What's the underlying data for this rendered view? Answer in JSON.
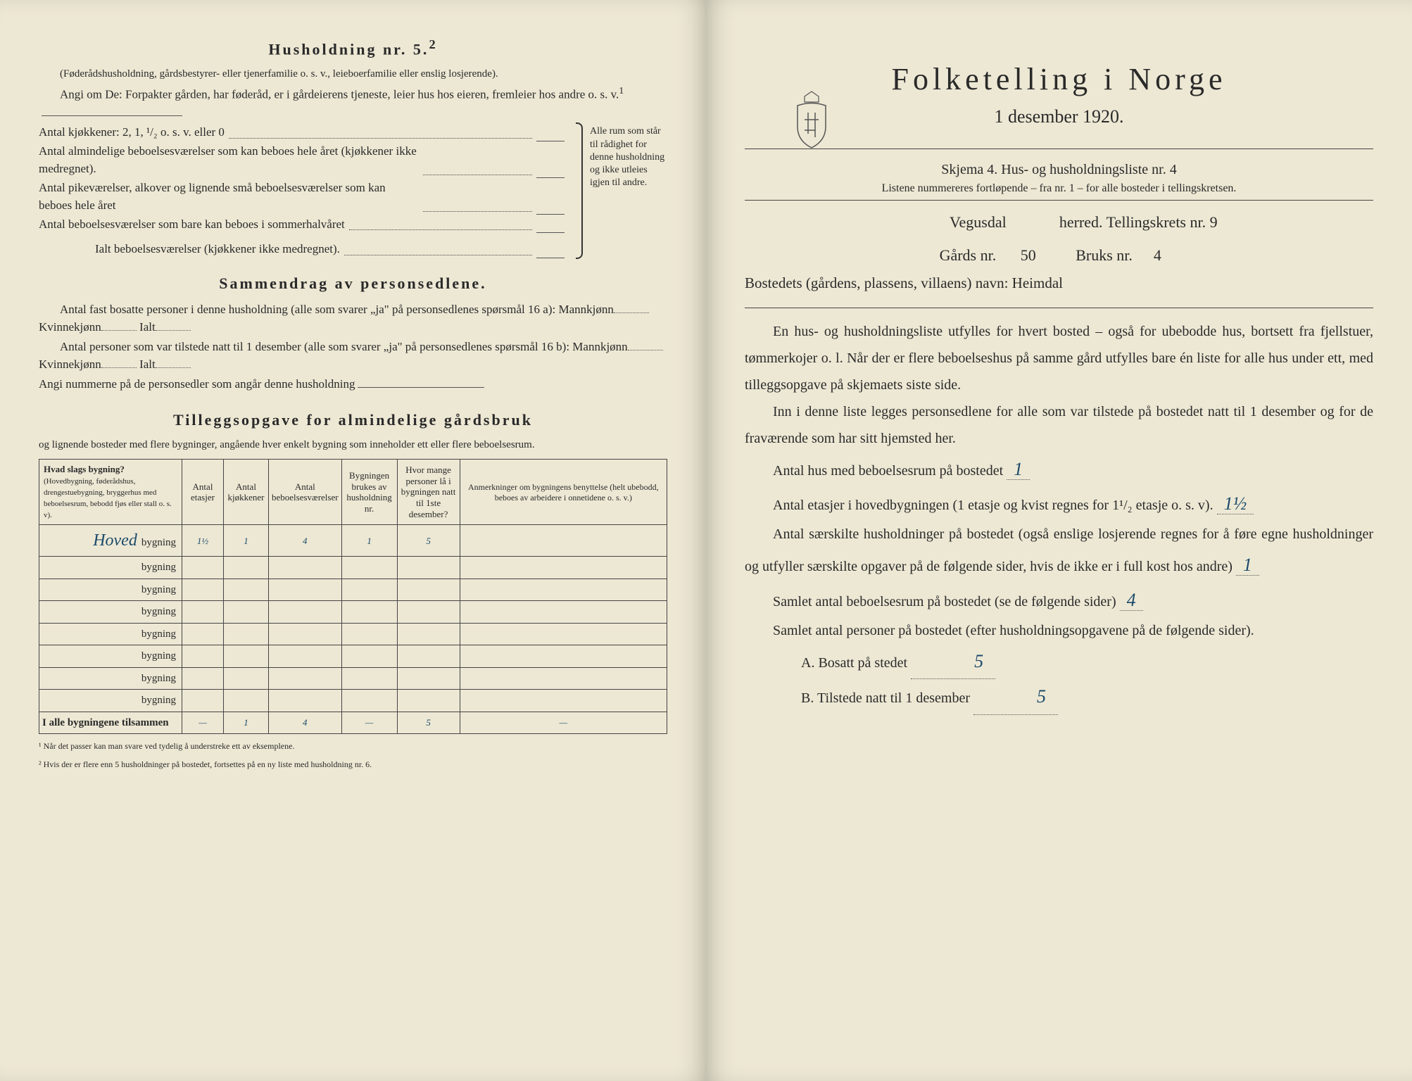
{
  "left": {
    "heading": "Husholdning nr. 5.",
    "heading_sup": "2",
    "sub1": "(Føderådshusholdning, gårdsbestyrer- eller tjenerfamilie o. s. v., leieboerfamilie eller enslig losjerende).",
    "body1": "Angi om De: Forpakter gården, har føderåd, er i gårdeierens tjeneste, leier hus hos eieren, fremleier hos andre o. s. v.",
    "body1_sup": "1",
    "kitchens_label": "Antal kjøkkener: 2, 1, ¹/₂ o. s. v. eller 0",
    "rooms1": "Antal almindelige beboelsesværelser som kan beboes hele året (kjøkkener ikke medregnet).",
    "rooms2": "Antal pikeværelser, alkover og lignende små beboelsesværelser som kan beboes hele året",
    "rooms3": "Antal beboelsesværelser som bare kan beboes i sommerhalvåret",
    "rooms_total": "Ialt beboelsesværelser  (kjøkkener ikke medregnet).",
    "bracket_note": "Alle rum som står til rådighet for denne husholdning og ikke utleies igjen til andre.",
    "section2": "Sammendrag av personsedlene.",
    "s2_l1a": "Antal fast bosatte personer i denne husholdning (alle som svarer „ja\" på personsedlenes spørsmål 16 a): Mannkjønn",
    "s2_kv": "Kvinnekjønn",
    "s2_ialt": "Ialt",
    "s2_l2a": "Antal personer som var tilstede natt til 1 desember (alle som svarer „ja\" på personsedlenes spørsmål 16 b): Mannkjønn",
    "s2_angi": "Angi nummerne på de personsedler som angår denne husholdning",
    "section3": "Tilleggsopgave for almindelige gårdsbruk",
    "s3_sub": "og lignende bosteder med flere bygninger, angående hver enkelt bygning som inneholder ett eller flere beboelsesrum.",
    "table": {
      "headers": [
        "Hvad slags bygning?\n(Hovedbygning, føderådshus, drengestuebygning, bryggerhus med beboelsesrum, bebodd fjøs eller stall o. s. v).",
        "Antal etasjer",
        "Antal kjøkkener",
        "Antal beboelsesværelser",
        "Bygningen brukes av husholdning nr.",
        "Hvor mange personer lå i bygningens benyttede (helt ubebodd, beboes av arbeidere i onnetidene o. s. v.)",
        "Anmerkninger om bygningens benyttelse (helt ubebodd, beboes av arbeidere i onnetidene o. s. v.)"
      ],
      "h5": "Hvor mange personer lå i bygningen natt til 1ste desember?",
      "row_label_prefix": "Hoved",
      "row_suffix": "bygning",
      "rows": [
        {
          "prefix": "Hoved",
          "cells": [
            "1½",
            "1",
            "4",
            "1",
            "5",
            ""
          ]
        },
        {
          "prefix": "",
          "cells": [
            "",
            "",
            "",
            "",
            "",
            ""
          ]
        },
        {
          "prefix": "",
          "cells": [
            "",
            "",
            "",
            "",
            "",
            ""
          ]
        },
        {
          "prefix": "",
          "cells": [
            "",
            "",
            "",
            "",
            "",
            ""
          ]
        },
        {
          "prefix": "",
          "cells": [
            "",
            "",
            "",
            "",
            "",
            ""
          ]
        },
        {
          "prefix": "",
          "cells": [
            "",
            "",
            "",
            "",
            "",
            ""
          ]
        },
        {
          "prefix": "",
          "cells": [
            "",
            "",
            "",
            "",
            "",
            ""
          ]
        },
        {
          "prefix": "",
          "cells": [
            "",
            "",
            "",
            "",
            "",
            ""
          ]
        }
      ],
      "total_label": "I alle bygningene tilsammen",
      "total_cells": [
        "—",
        "1",
        "4",
        "—",
        "5",
        "—"
      ]
    },
    "footnote1": "¹ Når det passer kan man svare ved tydelig å understreke ett av eksemplene.",
    "footnote2": "² Hvis der er flere enn 5 husholdninger på bostedet, fortsettes på en ny liste med husholdning nr. 6."
  },
  "right": {
    "title": "Folketelling i Norge",
    "date": "1 desember 1920.",
    "skjema_label": "Skjema 4.  Hus- og husholdningsliste nr.",
    "skjema_val": "4",
    "list_note": "Listene nummereres fortløpende – fra nr. 1 – for alle bosteder i tellingskretsen.",
    "herred_val": "Vegusdal",
    "herred_suffix": "herred.   Tellingskrets nr.",
    "krets_val": "9",
    "gard_label": "Gårds nr.",
    "gard_val": "50",
    "bruks_label": "Bruks nr.",
    "bruks_val": "4",
    "bosted_label": "Bostedets (gårdens, plassens, villaens) navn:",
    "bosted_val": "Heimdal",
    "para1": "En hus- og husholdningsliste utfylles for hvert bosted – også for ubebodde hus, bortsett fra fjellstuer, tømmerkojer o. l.  Når der er flere beboelseshus på samme gård utfylles bare én liste for alle hus under ett, med tilleggsopgave på skjemaets siste side.",
    "para2": "Inn i denne liste legges personsedlene for alle som var tilstede på bostedet natt til 1 desember og for de fraværende som har sitt hjemsted her.",
    "q1": "Antal hus med beboelsesrum på bostedet",
    "q1_val": "1",
    "q2a": "Antal etasjer i hovedbygningen (1 etasje og kvist regnes for 1¹/₂ etasje o. s. v).",
    "q2_val": "1½",
    "q3": "Antal særskilte husholdninger på bostedet (også enslige losjerende regnes for å føre egne husholdninger og utfyller særskilte opgaver på de følgende sider, hvis de ikke er i full kost hos andre)",
    "q3_val": "1",
    "q4": "Samlet antal beboelsesrum på bostedet (se de følgende sider)",
    "q4_val": "4",
    "q5": "Samlet antal personer på bostedet (efter husholdningsopgavene på de følgende sider).",
    "qa": "A.  Bosatt på stedet",
    "qa_val": "5",
    "qb": "B.  Tilstede natt til 1 desember",
    "qb_val": "5"
  },
  "colors": {
    "paper": "#ede8d4",
    "ink": "#2a2a2a",
    "hand": "#1a4a6a"
  }
}
